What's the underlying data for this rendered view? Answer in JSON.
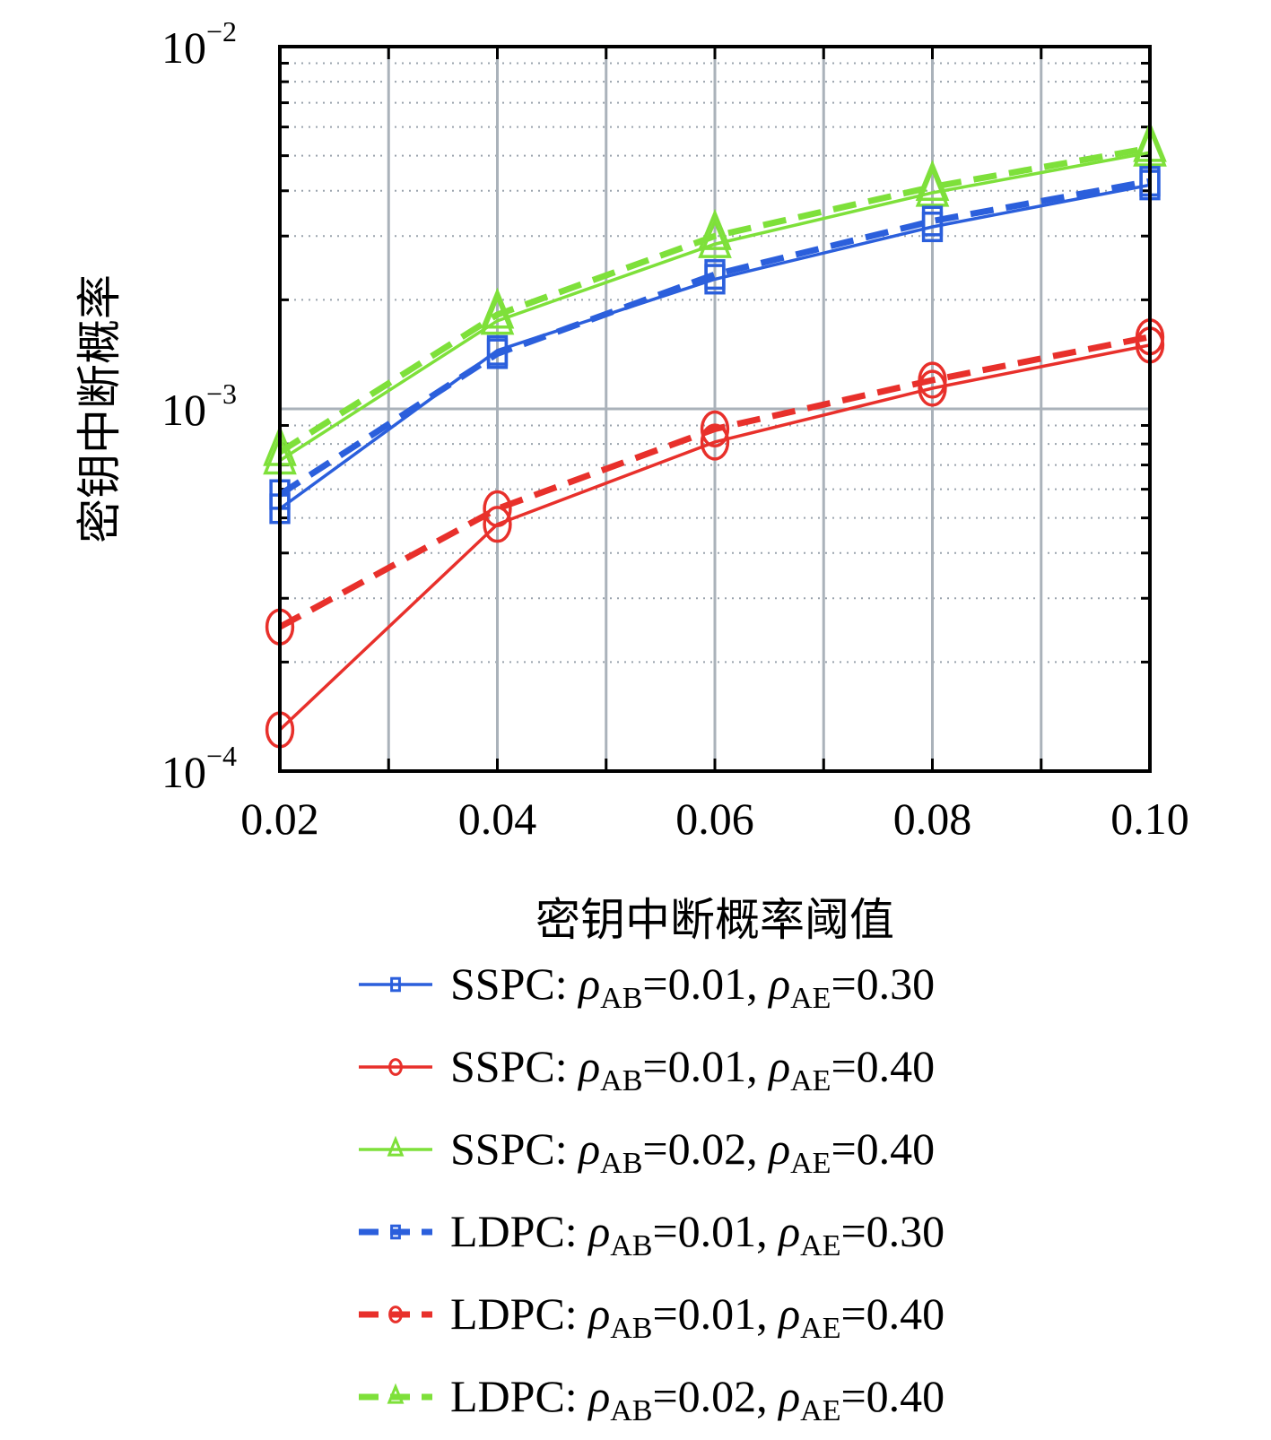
{
  "chart_data": {
    "type": "line",
    "xlabel": "密钥中断概率阈值",
    "ylabel": "密钥中断概率",
    "x": [
      0.02,
      0.04,
      0.06,
      0.08,
      0.1
    ],
    "x_tick_labels": [
      "0.02",
      "0.04",
      "0.06",
      "0.08",
      "0.10"
    ],
    "xlim": [
      0.02,
      0.1
    ],
    "yscale": "log",
    "ylim": [
      0.0001,
      0.01
    ],
    "y_tick_labels": [
      {
        "base": "10",
        "exp": "−4"
      },
      {
        "base": "10",
        "exp": "−3"
      },
      {
        "base": "10",
        "exp": "−2"
      }
    ],
    "grid": true,
    "legend_position": "below",
    "series": [
      {
        "name": "SSPC: ρAB=0.01, ρAE=0.30",
        "scheme": "SSPC",
        "rho_ab": "0.01",
        "rho_ae": "0.30",
        "color": "#2b5fdc",
        "marker": "square",
        "dashed": false,
        "values": [
          0.00053,
          0.00145,
          0.00228,
          0.00318,
          0.00415
        ]
      },
      {
        "name": "SSPC: ρAB=0.01, ρAE=0.40",
        "scheme": "SSPC",
        "rho_ab": "0.01",
        "rho_ae": "0.40",
        "color": "#e8302b",
        "marker": "circle",
        "dashed": false,
        "values": [
          0.00013,
          0.00048,
          0.00081,
          0.00114,
          0.0015
        ]
      },
      {
        "name": "SSPC: ρAB=0.02, ρAE=0.40",
        "scheme": "SSPC",
        "rho_ab": "0.02",
        "rho_ae": "0.40",
        "color": "#7ee03a",
        "marker": "triangle",
        "dashed": false,
        "values": [
          0.00072,
          0.00175,
          0.00285,
          0.00395,
          0.0051
        ]
      },
      {
        "name": "LDPC: ρAB=0.01, ρAE=0.30",
        "scheme": "LDPC",
        "rho_ab": "0.01",
        "rho_ae": "0.30",
        "color": "#2b5fdc",
        "marker": "square",
        "dashed": true,
        "values": [
          0.00058,
          0.00142,
          0.00235,
          0.0033,
          0.00425
        ]
      },
      {
        "name": "LDPC: ρAB=0.01, ρAE=0.40",
        "scheme": "LDPC",
        "rho_ab": "0.01",
        "rho_ae": "0.40",
        "color": "#e8302b",
        "marker": "circle",
        "dashed": true,
        "values": [
          0.00025,
          0.00053,
          0.00088,
          0.0012,
          0.00158
        ]
      },
      {
        "name": "LDPC: ρAB=0.02, ρAE=0.40",
        "scheme": "LDPC",
        "rho_ab": "0.02",
        "rho_ae": "0.40",
        "color": "#7ee03a",
        "marker": "triangle",
        "dashed": true,
        "values": [
          0.00076,
          0.00182,
          0.003,
          0.0041,
          0.00525
        ]
      }
    ]
  }
}
